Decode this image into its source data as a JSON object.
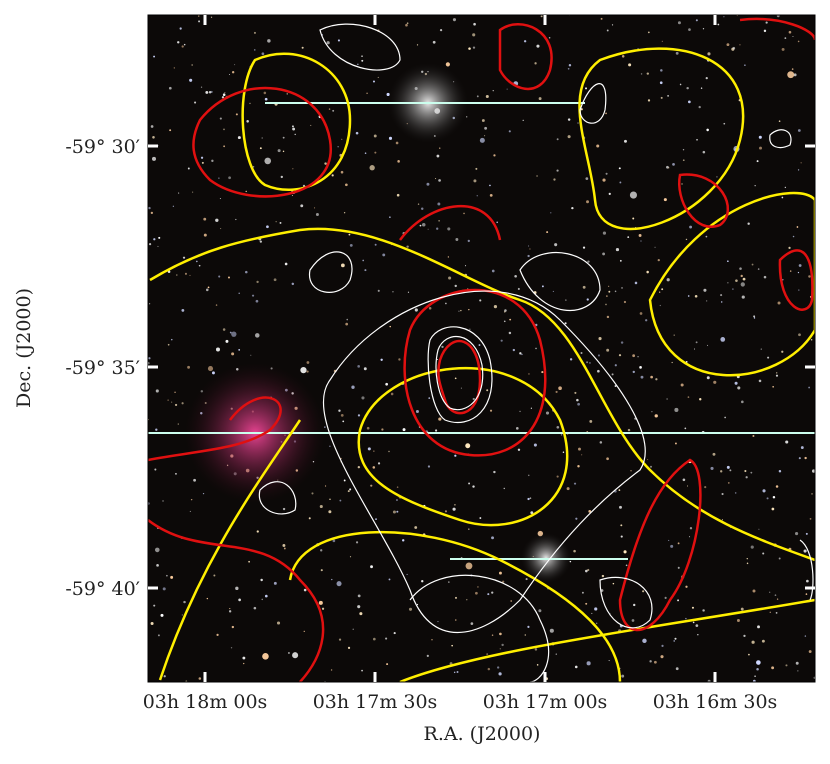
{
  "figure": {
    "x_label": "R.A. (J2000)",
    "y_label": "Dec. (J2000)",
    "x_ticks": [
      "03h 18m 00s",
      "03h 17m 30s",
      "03h 17m 00s",
      "03h 16m 30s"
    ],
    "y_ticks": [
      "-59° 30′",
      "-59° 35′",
      "-59° 40′"
    ]
  }
}
